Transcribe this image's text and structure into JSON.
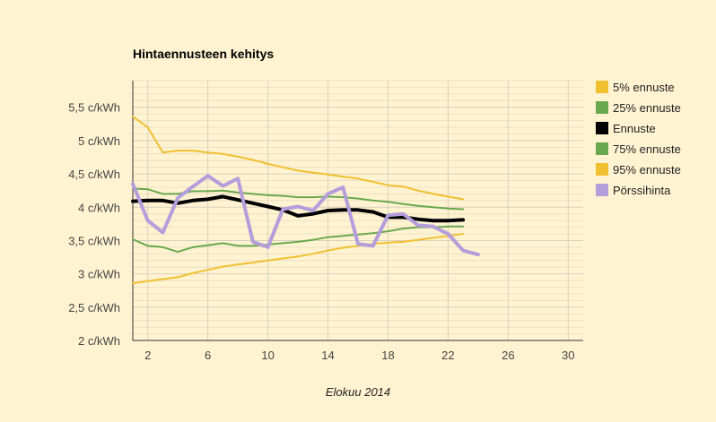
{
  "chart_data": {
    "type": "line",
    "title": "Hintaennusteen kehitys",
    "xlabel": "Elokuu 2014",
    "ylabel": "",
    "xlim": [
      1,
      31
    ],
    "ylim": [
      2,
      5.9
    ],
    "x_ticks": [
      2,
      6,
      10,
      14,
      18,
      22,
      26,
      30
    ],
    "y_ticks": [
      {
        "value": 2,
        "label": "2 c/kWh"
      },
      {
        "value": 2.5,
        "label": "2,5 c/kWh"
      },
      {
        "value": 3,
        "label": "3 c/kWh"
      },
      {
        "value": 3.5,
        "label": "3,5 c/kWh"
      },
      {
        "value": 4,
        "label": "4 c/kWh"
      },
      {
        "value": 4.5,
        "label": "4,5 c/kWh"
      },
      {
        "value": 5,
        "label": "5 c/kWh"
      },
      {
        "value": 5.5,
        "label": "5,5 c/kWh"
      }
    ],
    "grid": true,
    "legend_position": "right",
    "series": [
      {
        "name": "5% ennuste",
        "color": "#f0c030",
        "width": 2,
        "x": [
          1,
          2,
          3,
          4,
          5,
          6,
          7,
          8,
          9,
          10,
          11,
          12,
          13,
          14,
          15,
          16,
          17,
          18,
          19,
          20,
          21,
          22,
          23
        ],
        "values": [
          2.86,
          2.89,
          2.92,
          2.95,
          3.01,
          3.06,
          3.11,
          3.14,
          3.17,
          3.2,
          3.23,
          3.26,
          3.3,
          3.35,
          3.39,
          3.42,
          3.45,
          3.47,
          3.48,
          3.51,
          3.54,
          3.57,
          3.6
        ]
      },
      {
        "name": "25% ennuste",
        "color": "#6aa84f",
        "width": 2,
        "x": [
          1,
          2,
          3,
          4,
          5,
          6,
          7,
          8,
          9,
          10,
          11,
          12,
          13,
          14,
          15,
          16,
          17,
          18,
          19,
          20,
          21,
          22,
          23
        ],
        "values": [
          3.52,
          3.42,
          3.4,
          3.33,
          3.4,
          3.43,
          3.46,
          3.42,
          3.42,
          3.44,
          3.46,
          3.48,
          3.51,
          3.55,
          3.57,
          3.59,
          3.61,
          3.64,
          3.68,
          3.7,
          3.7,
          3.71,
          3.71
        ]
      },
      {
        "name": "Ennuste",
        "color": "#000000",
        "width": 4,
        "x": [
          1,
          2,
          3,
          4,
          5,
          6,
          7,
          8,
          9,
          10,
          11,
          12,
          13,
          14,
          15,
          16,
          17,
          18,
          19,
          20,
          21,
          22,
          23
        ],
        "values": [
          4.09,
          4.1,
          4.1,
          4.06,
          4.1,
          4.12,
          4.16,
          4.11,
          4.06,
          4.01,
          3.96,
          3.87,
          3.9,
          3.95,
          3.96,
          3.96,
          3.93,
          3.85,
          3.85,
          3.82,
          3.8,
          3.8,
          3.81
        ]
      },
      {
        "name": "75% ennuste",
        "color": "#6aa84f",
        "width": 2,
        "x": [
          1,
          2,
          3,
          4,
          5,
          6,
          7,
          8,
          9,
          10,
          11,
          12,
          13,
          14,
          15,
          16,
          17,
          18,
          19,
          20,
          21,
          22,
          23
        ],
        "values": [
          4.28,
          4.27,
          4.2,
          4.2,
          4.24,
          4.24,
          4.25,
          4.22,
          4.2,
          4.18,
          4.17,
          4.15,
          4.15,
          4.16,
          4.15,
          4.13,
          4.1,
          4.08,
          4.05,
          4.02,
          4,
          3.98,
          3.97
        ]
      },
      {
        "name": "95% ennuste",
        "color": "#f0c030",
        "width": 2,
        "x": [
          1,
          2,
          3,
          4,
          5,
          6,
          7,
          8,
          9,
          10,
          11,
          12,
          13,
          14,
          15,
          16,
          17,
          18,
          19,
          20,
          21,
          22,
          23
        ],
        "values": [
          5.36,
          5.2,
          4.82,
          4.85,
          4.85,
          4.82,
          4.8,
          4.76,
          4.71,
          4.65,
          4.6,
          4.55,
          4.52,
          4.49,
          4.46,
          4.43,
          4.38,
          4.33,
          4.31,
          4.25,
          4.2,
          4.16,
          4.12
        ]
      },
      {
        "name": "Pörssihinta",
        "color": "#b39ddb",
        "width": 4,
        "x": [
          1,
          2,
          3,
          4,
          5,
          6,
          7,
          8,
          9,
          10,
          11,
          12,
          13,
          14,
          15,
          16,
          17,
          18,
          19,
          20,
          21,
          22,
          23,
          24
        ],
        "values": [
          4.35,
          3.8,
          3.62,
          4.14,
          4.31,
          4.47,
          4.32,
          4.43,
          3.48,
          3.4,
          3.97,
          4.01,
          3.95,
          4.2,
          4.3,
          3.45,
          3.42,
          3.88,
          3.9,
          3.73,
          3.71,
          3.6,
          3.35,
          3.29
        ]
      }
    ]
  }
}
